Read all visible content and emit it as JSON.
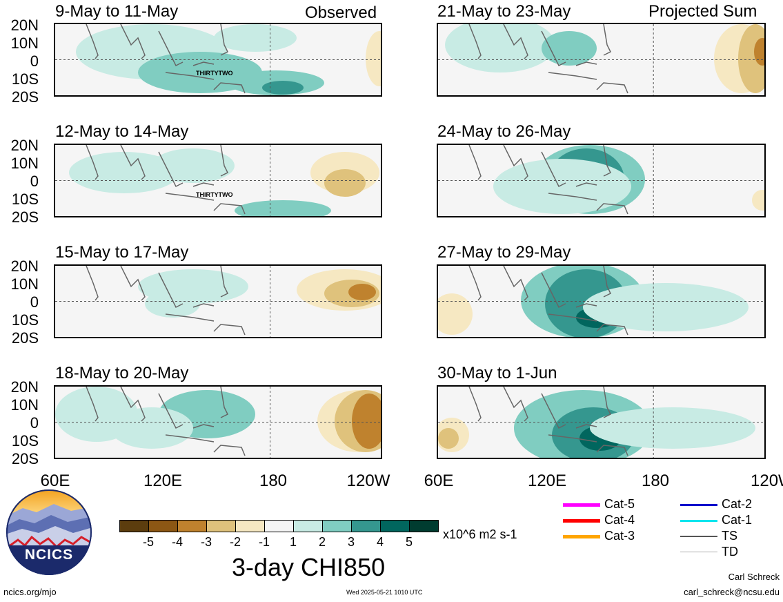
{
  "header": {
    "left_tag": "Observed",
    "right_tag": "Projected Sum"
  },
  "panels_left": [
    {
      "title": "9-May to 11-May",
      "storm_label": "THIRTYTWO"
    },
    {
      "title": "12-May to 14-May",
      "storm_label": "THIRTYTWO"
    },
    {
      "title": "15-May to 17-May"
    },
    {
      "title": "18-May to 20-May"
    }
  ],
  "panels_right": [
    {
      "title": "21-May to 23-May"
    },
    {
      "title": "24-May to 26-May"
    },
    {
      "title": "27-May to 29-May"
    },
    {
      "title": "30-May to 1-Jun"
    }
  ],
  "lat_labels": [
    "20N",
    "10N",
    "0",
    "10S",
    "20S"
  ],
  "lon_labels": [
    "60E",
    "120E",
    "180",
    "120W"
  ],
  "colorbar": {
    "colors": [
      "#5c3d0e",
      "#8c5714",
      "#bf822e",
      "#dfc27c",
      "#f6e8c2",
      "#f5f5f5",
      "#c8ebe4",
      "#80cdc1",
      "#35978f",
      "#01665e",
      "#003c30"
    ],
    "ticks": [
      "-5",
      "-4",
      "-3",
      "-2",
      "-1",
      "1",
      "2",
      "3",
      "4",
      "5"
    ],
    "units": "x10^6 m2 s-1",
    "title": "3-day CHI850"
  },
  "legend": {
    "items": [
      {
        "label": "Cat-5",
        "color": "#ff00ff"
      },
      {
        "label": "Cat-4",
        "color": "#ff0000"
      },
      {
        "label": "Cat-3",
        "color": "#ffa500"
      },
      {
        "label": "Cat-2",
        "color": "#0000cc"
      },
      {
        "label": "Cat-1",
        "color": "#00e5ee"
      },
      {
        "label": "TS",
        "color": "#555555"
      },
      {
        "label": "TD",
        "color": "#aaaaaa"
      }
    ]
  },
  "logo": {
    "text": "NCICS"
  },
  "footer": {
    "left": "ncics.org/mjo",
    "center": "Wed 2025-05-21 1010 UTC",
    "author": "Carl Schreck",
    "email": "carl_schreck@ncsu.edu"
  }
}
